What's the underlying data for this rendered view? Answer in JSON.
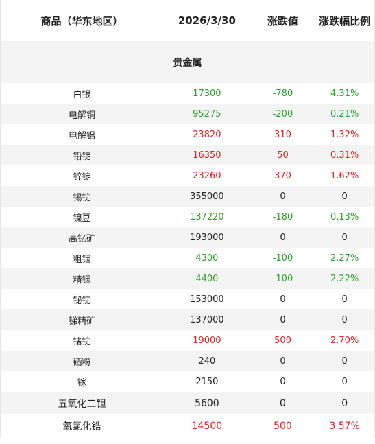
{
  "header": {
    "product": "商品（华东地区）",
    "date": "2026/3/30",
    "change": "涨跌值",
    "pct": "涨跌幅比例"
  },
  "section_title": "贵金属",
  "colors": {
    "up": "#e02020",
    "down": "#2aa02a",
    "flat": "#222222"
  },
  "rows": [
    {
      "name": "白银",
      "price": "17300",
      "change": "-780",
      "pct": "4.31%",
      "trend": "down"
    },
    {
      "name": "电解铜",
      "price": "95275",
      "change": "-200",
      "pct": "0.21%",
      "trend": "down"
    },
    {
      "name": "电解铝",
      "price": "23820",
      "change": "310",
      "pct": "1.32%",
      "trend": "up"
    },
    {
      "name": "铅锭",
      "price": "16350",
      "change": "50",
      "pct": "0.31%",
      "trend": "up"
    },
    {
      "name": "锌锭",
      "price": "23260",
      "change": "370",
      "pct": "1.62%",
      "trend": "up"
    },
    {
      "name": "锡锭",
      "price": "355000",
      "change": "0",
      "pct": "0",
      "trend": "flat"
    },
    {
      "name": "镍豆",
      "price": "137220",
      "change": "-180",
      "pct": "0.13%",
      "trend": "down"
    },
    {
      "name": "高钇矿",
      "price": "193000",
      "change": "0",
      "pct": "0",
      "trend": "flat"
    },
    {
      "name": "粗铟",
      "price": "4300",
      "change": "-100",
      "pct": "2.27%",
      "trend": "down"
    },
    {
      "name": "精铟",
      "price": "4400",
      "change": "-100",
      "pct": "2.22%",
      "trend": "down"
    },
    {
      "name": "铋锭",
      "price": "153000",
      "change": "0",
      "pct": "0",
      "trend": "flat"
    },
    {
      "name": "锑精矿",
      "price": "137000",
      "change": "0",
      "pct": "0",
      "trend": "flat"
    },
    {
      "name": "锗锭",
      "price": "19000",
      "change": "500",
      "pct": "2.70%",
      "trend": "up"
    },
    {
      "name": "硒粉",
      "price": "240",
      "change": "0",
      "pct": "0",
      "trend": "flat"
    },
    {
      "name": "镓",
      "price": "2150",
      "change": "0",
      "pct": "0",
      "trend": "flat"
    },
    {
      "name": "五氧化二钽",
      "price": "5600",
      "change": "0",
      "pct": "0",
      "trend": "flat"
    },
    {
      "name": "氧氯化锆",
      "price": "14500",
      "change": "500",
      "pct": "3.57%",
      "trend": "up"
    }
  ]
}
